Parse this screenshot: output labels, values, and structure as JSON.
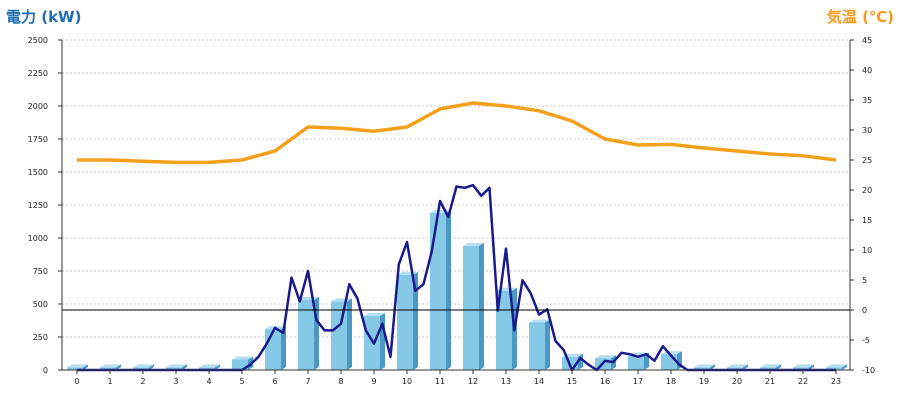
{
  "chart_data": {
    "type": "bar",
    "title_left": "電力 (kW)",
    "title_right": "気温 (℃)",
    "x_ticks": [
      "0",
      "1",
      "2",
      "3",
      "4",
      "5",
      "6",
      "7",
      "8",
      "9",
      "10",
      "11",
      "12",
      "13",
      "14",
      "15",
      "16",
      "17",
      "18",
      "19",
      "20",
      "21",
      "22",
      "23"
    ],
    "y_left_ticks": [
      "0",
      "250",
      "500",
      "750",
      "1000",
      "1250",
      "1500",
      "1750",
      "2000",
      "2250",
      "2500"
    ],
    "y_right_ticks": [
      "-10",
      "-5",
      "0",
      "5",
      "10",
      "15",
      "20",
      "25",
      "30",
      "35",
      "40",
      "45"
    ],
    "y_left_lim": [
      0,
      2500
    ],
    "y_right_lim": [
      -10,
      45
    ],
    "zero_line_right": 0,
    "colors": {
      "bars": "#86c9e6",
      "power_line": "#1a1a8c",
      "temp_line": "#f5a01a",
      "grid": "#c9c9c9"
    },
    "series": [
      {
        "type": "bar",
        "axis": "left",
        "values": [
          20,
          20,
          20,
          20,
          20,
          80,
          310,
          530,
          520,
          410,
          720,
          1190,
          940,
          600,
          360,
          100,
          90,
          110,
          120,
          20,
          20,
          20,
          20,
          20
        ]
      },
      {
        "type": "line",
        "axis": "left",
        "x": [
          0,
          0.5,
          1,
          1.5,
          2,
          2.5,
          3,
          3.5,
          4,
          4.5,
          5,
          5.25,
          5.5,
          5.75,
          6,
          6.25,
          6.5,
          6.75,
          7,
          7.25,
          7.5,
          7.75,
          8,
          8.25,
          8.5,
          8.75,
          9,
          9.25,
          9.5,
          9.75,
          10,
          10.25,
          10.5,
          10.75,
          11,
          11.25,
          11.5,
          11.75,
          12,
          12.25,
          12.5,
          12.75,
          13,
          13.25,
          13.5,
          13.75,
          14,
          14.25,
          14.5,
          14.75,
          15,
          15.25,
          15.5,
          15.75,
          16,
          16.25,
          16.5,
          16.75,
          17,
          17.25,
          17.5,
          17.75,
          18,
          18.25,
          18.5,
          19,
          20,
          21,
          22,
          23
        ],
        "values": [
          0,
          0,
          0,
          0,
          0,
          0,
          0,
          0,
          0,
          0,
          0,
          40,
          100,
          200,
          320,
          280,
          700,
          520,
          750,
          380,
          300,
          300,
          350,
          650,
          540,
          300,
          200,
          350,
          100,
          800,
          970,
          600,
          650,
          900,
          1280,
          1160,
          1390,
          1380,
          1400,
          1320,
          1380,
          450,
          920,
          300,
          680,
          580,
          420,
          460,
          220,
          150,
          0,
          90,
          40,
          0,
          70,
          60,
          130,
          120,
          100,
          120,
          70,
          180,
          110,
          40,
          0,
          0,
          0,
          0,
          0,
          0
        ]
      },
      {
        "type": "line",
        "axis": "right",
        "x": [
          0,
          1,
          2,
          3,
          4,
          5,
          6,
          7,
          8,
          9,
          10,
          11,
          12,
          13,
          14,
          15,
          16,
          17,
          18,
          19,
          20,
          21,
          22,
          23
        ],
        "values": [
          25,
          25,
          24.8,
          24.6,
          24.6,
          25,
          26.5,
          30.5,
          30.3,
          29.8,
          30.5,
          33.5,
          34.5,
          34,
          33.2,
          31.5,
          28.5,
          27.5,
          27.6,
          27,
          26.5,
          26,
          25.7,
          25
        ]
      }
    ]
  }
}
